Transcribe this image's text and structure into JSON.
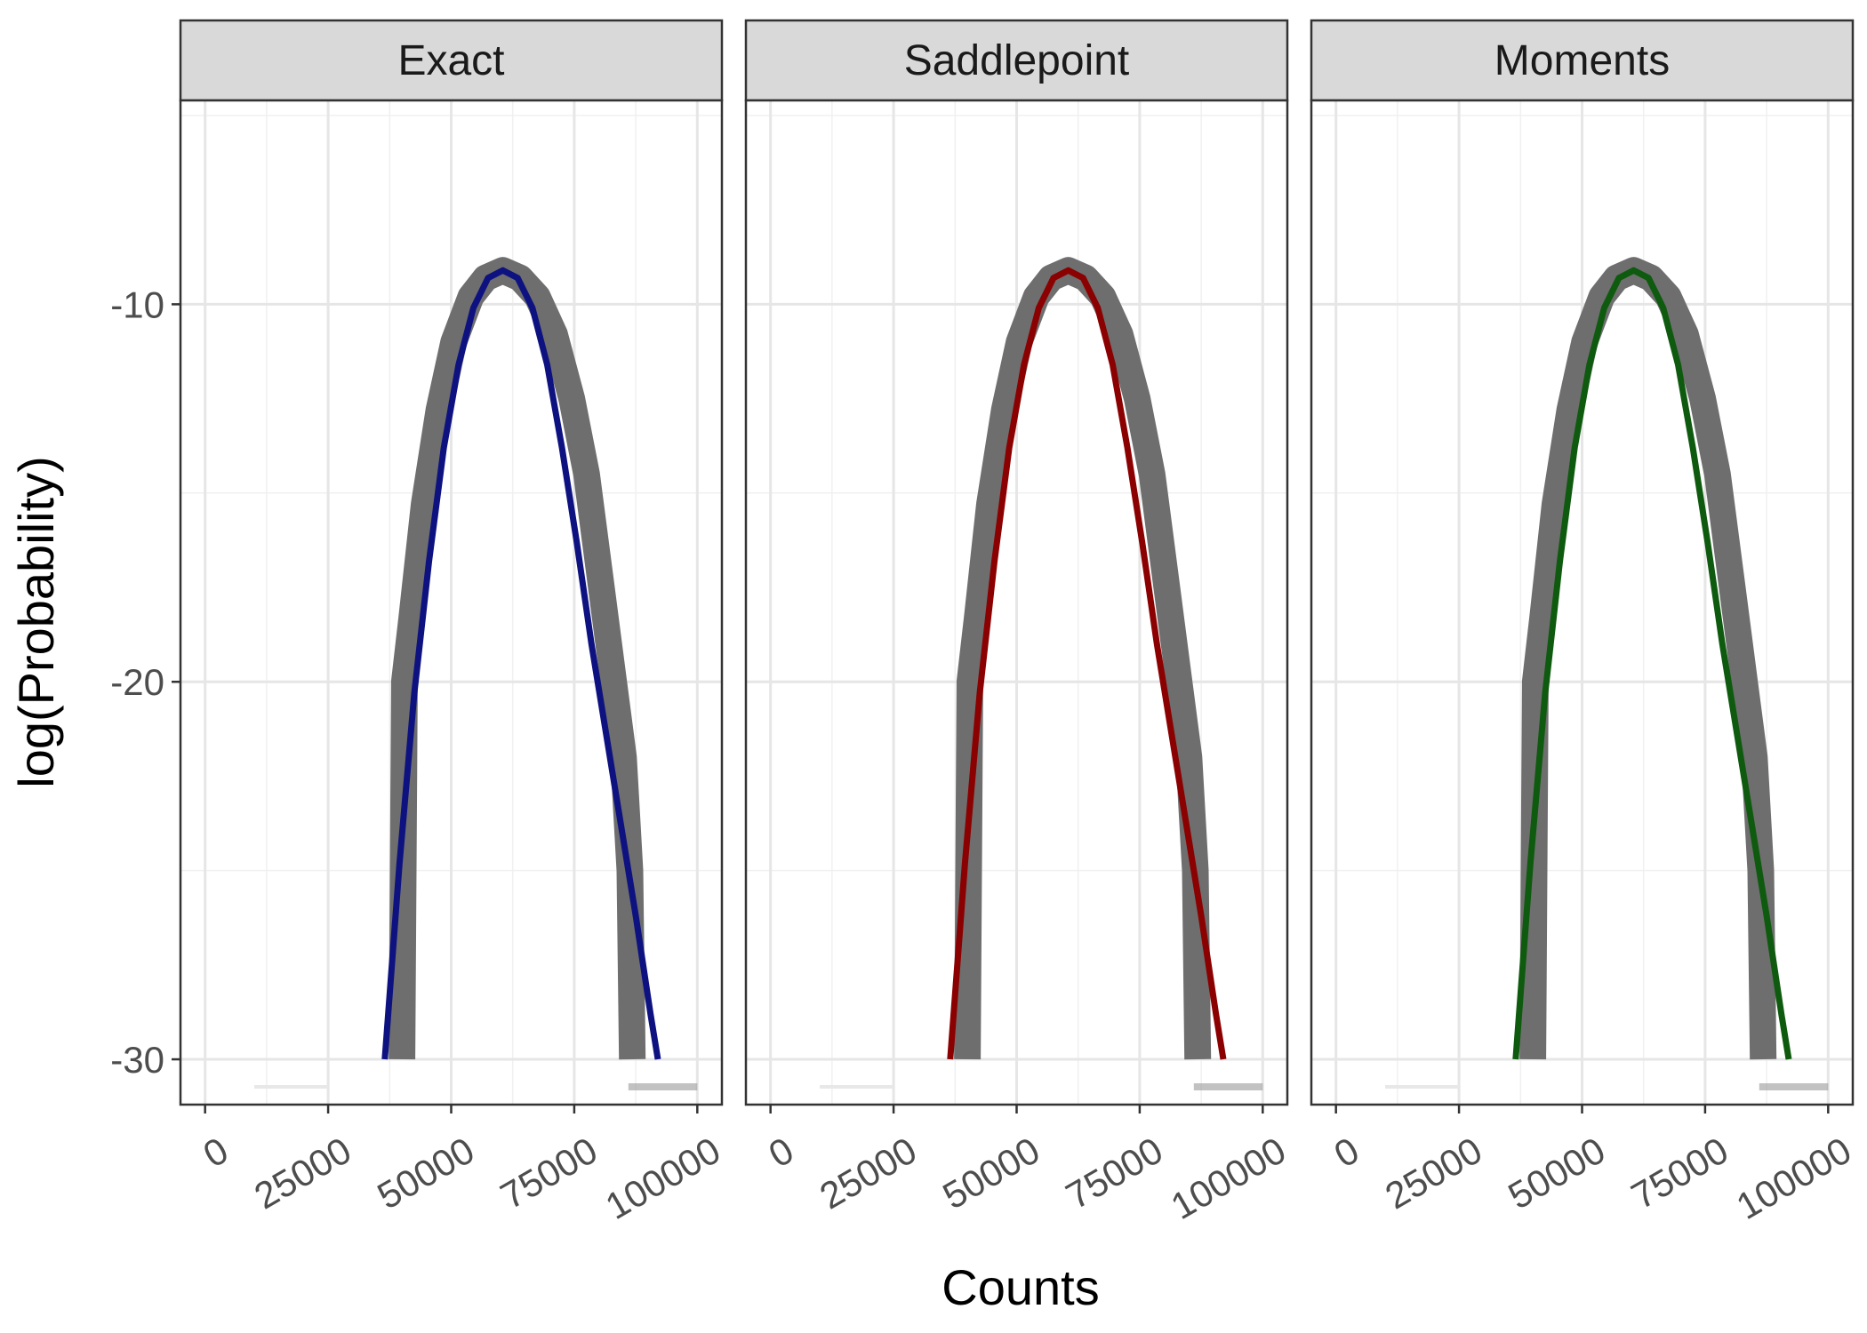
{
  "chart_data": {
    "type": "line",
    "xlabel": "Counts",
    "ylabel": "log(Probability)",
    "xlim": [
      -5000,
      105000
    ],
    "ylim": [
      -31.2,
      -4.6
    ],
    "x_ticks": [
      0,
      25000,
      50000,
      75000,
      100000
    ],
    "x_tick_labels": [
      "0",
      "25000",
      "50000",
      "75000",
      "100000"
    ],
    "y_ticks": [
      -10,
      -20,
      -30
    ],
    "y_tick_labels": [
      "-10",
      "-20",
      "-30"
    ],
    "grid": true,
    "background": "#ffffff",
    "reference": {
      "color": "#6e6e6e",
      "peak_x": 60500,
      "peak_y": -9.1,
      "left_x": [
        40000,
        40500,
        42000,
        44500,
        47500,
        50500,
        54000,
        57000,
        60500,
        64000,
        67500,
        71000,
        74500,
        77500,
        80500,
        83000,
        85000,
        86300,
        86800
      ],
      "left_y": [
        -30.0,
        -20.0,
        -18.3,
        -15.3,
        -12.8,
        -11.0,
        -9.8,
        -9.3,
        -9.1,
        -9.3,
        -9.8,
        -10.8,
        -12.5,
        -14.5,
        -17.5,
        -20.0,
        -22.0,
        -25.0,
        -30.0
      ]
    },
    "panels": [
      {
        "title": "Exact",
        "color": "#0d1280",
        "series": [
          {
            "x": [
              36500,
              39500,
              42500,
              45500,
              48500,
              51500,
              54500,
              57500,
              60500,
              63500,
              66500,
              69500,
              72500,
              75500,
              78500,
              81500,
              84500,
              87500,
              90500,
              92000
            ],
            "y": [
              -30.0,
              -24.8,
              -20.3,
              -16.8,
              -13.8,
              -11.6,
              -10.1,
              -9.3,
              -9.1,
              -9.3,
              -10.1,
              -11.6,
              -13.8,
              -16.3,
              -19.0,
              -21.4,
              -23.8,
              -26.2,
              -28.8,
              -30.0
            ]
          }
        ]
      },
      {
        "title": "Saddlepoint",
        "color": "#8b0000",
        "series": [
          {
            "x": [
              36500,
              39500,
              42500,
              45500,
              48500,
              51500,
              54500,
              57500,
              60500,
              63500,
              66500,
              69500,
              72500,
              75500,
              78500,
              81500,
              84500,
              87500,
              90500,
              92000
            ],
            "y": [
              -30.0,
              -24.8,
              -20.3,
              -16.8,
              -13.8,
              -11.6,
              -10.1,
              -9.3,
              -9.1,
              -9.3,
              -10.1,
              -11.6,
              -13.8,
              -16.3,
              -19.0,
              -21.4,
              -23.8,
              -26.2,
              -28.8,
              -30.0
            ]
          }
        ]
      },
      {
        "title": "Moments",
        "color": "#0e5a0e",
        "series": [
          {
            "x": [
              36500,
              39500,
              42500,
              45500,
              48500,
              51500,
              54500,
              57500,
              60500,
              63500,
              66500,
              69500,
              72500,
              75500,
              78500,
              81500,
              84500,
              87500,
              90500,
              92000
            ],
            "y": [
              -30.0,
              -24.8,
              -20.3,
              -16.8,
              -13.8,
              -11.6,
              -10.1,
              -9.3,
              -9.1,
              -9.3,
              -10.1,
              -11.6,
              -13.8,
              -16.3,
              -19.0,
              -21.4,
              -23.8,
              -26.2,
              -28.8,
              -30.0
            ]
          }
        ]
      }
    ]
  }
}
